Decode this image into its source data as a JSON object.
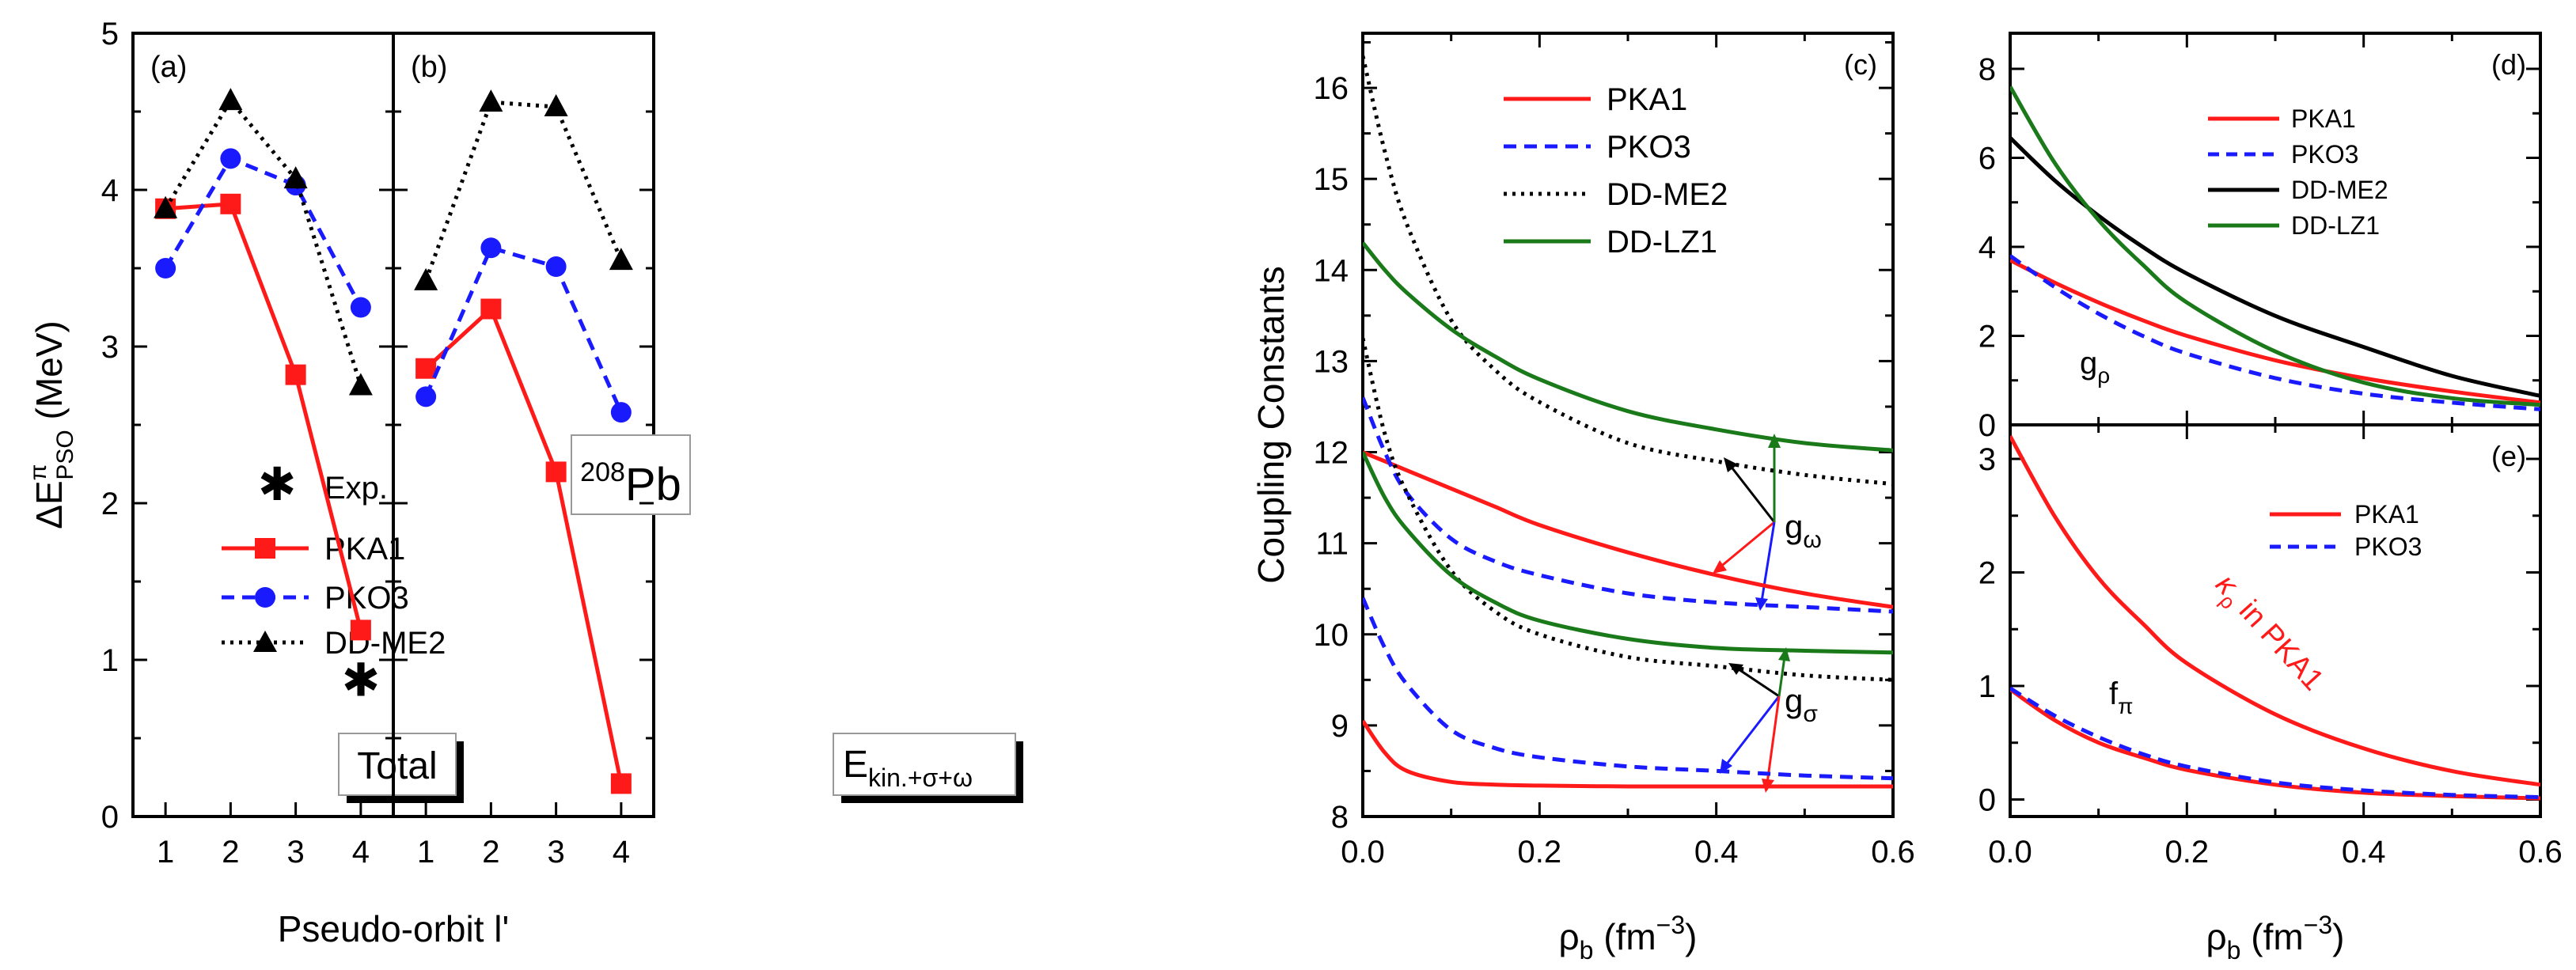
{
  "colors": {
    "PKA1": "#ff1a1a",
    "PKO3": "#1a1aff",
    "DD-ME2": "#000000",
    "DD-LZ1": "#1a7a1a"
  },
  "labels": {
    "y_left": "ΔE",
    "y_left_sup": "π",
    "y_left_sub": "PSO",
    "y_left_unit": " (MeV)",
    "x_left": "Pseudo-orbit l'",
    "nucleus_mass": "208",
    "nucleus_sym": "Pb",
    "panel_a_box": "Total",
    "panel_b_box_main": "E",
    "panel_b_box_sub": "kin.+σ+ω",
    "coupling_ylabel": "Coupling Constants",
    "rho_label": "ρ",
    "rho_sub": "b",
    "rho_unit": " (fm",
    "rho_exp": "−3",
    "rho_close": ")",
    "g_omega": "g",
    "g_omega_sub": "ω",
    "g_sigma": "g",
    "g_sigma_sub": "σ",
    "g_rho": "g",
    "g_rho_sub": "ρ",
    "kappa": "κ",
    "kappa_sub": "ρ",
    "kappa_rest": " in PKA1",
    "f_pi": "f",
    "f_pi_sub": "π"
  },
  "chart_data": [
    {
      "id": "a",
      "type": "line",
      "panel_label": "(a)",
      "x": [
        1,
        2,
        3,
        4
      ],
      "xlim": [
        0.5,
        4.5
      ],
      "ylim": [
        0,
        5
      ],
      "xticks": [
        "1",
        "2",
        "3",
        "4"
      ],
      "yticks": [
        "0",
        "1",
        "2",
        "3",
        "4",
        "5"
      ],
      "series": [
        {
          "name": "PKA1",
          "values": [
            3.88,
            3.91,
            2.82,
            1.19
          ],
          "marker": "square",
          "style": "solid"
        },
        {
          "name": "PKO3",
          "values": [
            3.5,
            4.2,
            4.03,
            3.25
          ],
          "marker": "circle",
          "style": "dashed"
        },
        {
          "name": "DD-ME2",
          "values": [
            3.88,
            4.57,
            4.07,
            2.75
          ],
          "marker": "triangle",
          "style": "dotted"
        }
      ],
      "experiment": {
        "name": "Exp.",
        "x": 4,
        "value": 0.87
      },
      "legend": [
        "Exp.",
        "PKA1",
        "PKO3",
        "DD-ME2"
      ]
    },
    {
      "id": "b",
      "type": "line",
      "panel_label": "(b)",
      "x": [
        1,
        2,
        3,
        4
      ],
      "xlim": [
        0.5,
        4.5
      ],
      "ylim": [
        0,
        5
      ],
      "xticks": [
        "1",
        "2",
        "3",
        "4"
      ],
      "series": [
        {
          "name": "PKA1",
          "values": [
            2.86,
            3.24,
            2.2,
            0.21
          ],
          "marker": "square",
          "style": "solid"
        },
        {
          "name": "PKO3",
          "values": [
            2.68,
            3.63,
            3.51,
            2.58
          ],
          "marker": "circle",
          "style": "dashed"
        },
        {
          "name": "DD-ME2",
          "values": [
            3.42,
            4.56,
            4.53,
            3.55
          ],
          "marker": "triangle",
          "style": "dotted"
        }
      ]
    },
    {
      "id": "c",
      "type": "line",
      "panel_label": "(c)",
      "x": [
        0,
        0.025,
        0.05,
        0.1,
        0.15,
        0.2,
        0.3,
        0.4,
        0.5,
        0.6
      ],
      "xlim": [
        0,
        0.6
      ],
      "ylim": [
        8,
        16.6
      ],
      "xticks": [
        "0.0",
        "0.2",
        "0.4",
        "0.6"
      ],
      "yticks": [
        "8",
        "9",
        "10",
        "11",
        "12",
        "13",
        "14",
        "15",
        "16"
      ],
      "series": [
        {
          "name": "PKA1",
          "coupling": "g_omega",
          "values": [
            12.0,
            11.9,
            11.8,
            11.6,
            11.4,
            11.2,
            10.9,
            10.65,
            10.45,
            10.3
          ],
          "style": "solid"
        },
        {
          "name": "PKA1",
          "coupling": "g_sigma",
          "values": [
            9.05,
            8.7,
            8.5,
            8.38,
            8.35,
            8.34,
            8.33,
            8.33,
            8.33,
            8.33
          ],
          "style": "solid"
        },
        {
          "name": "PKO3",
          "coupling": "g_omega",
          "values": [
            12.6,
            12.0,
            11.55,
            11.05,
            10.8,
            10.65,
            10.45,
            10.35,
            10.3,
            10.25
          ],
          "style": "dashed"
        },
        {
          "name": "PKO3",
          "coupling": "g_sigma",
          "values": [
            10.4,
            9.85,
            9.45,
            8.95,
            8.75,
            8.65,
            8.55,
            8.5,
            8.45,
            8.42
          ],
          "style": "dashed"
        },
        {
          "name": "DD-ME2",
          "coupling": "g_omega",
          "values": [
            16.35,
            15.3,
            14.5,
            13.45,
            12.9,
            12.55,
            12.1,
            11.9,
            11.75,
            11.65
          ],
          "style": "dotted"
        },
        {
          "name": "DD-ME2",
          "coupling": "g_sigma",
          "values": [
            13.25,
            12.2,
            11.55,
            10.7,
            10.25,
            10.0,
            9.75,
            9.65,
            9.55,
            9.5
          ],
          "style": "dotted"
        },
        {
          "name": "DD-LZ1",
          "coupling": "g_omega",
          "values": [
            14.3,
            14.0,
            13.75,
            13.35,
            13.05,
            12.8,
            12.45,
            12.25,
            12.1,
            12.02
          ],
          "style": "solid"
        },
        {
          "name": "DD-LZ1",
          "coupling": "g_sigma",
          "values": [
            12.0,
            11.5,
            11.15,
            10.65,
            10.35,
            10.15,
            9.95,
            9.85,
            9.82,
            9.8
          ],
          "style": "solid"
        }
      ],
      "legend": [
        "PKA1",
        "PKO3",
        "DD-ME2",
        "DD-LZ1"
      ]
    },
    {
      "id": "d",
      "type": "line",
      "panel_label": "(d)",
      "x": [
        0,
        0.05,
        0.1,
        0.15,
        0.2,
        0.3,
        0.4,
        0.5,
        0.6
      ],
      "xlim": [
        0,
        0.6
      ],
      "ylim": [
        0,
        8.8
      ],
      "yticks": [
        "0",
        "2",
        "4",
        "6",
        "8"
      ],
      "series": [
        {
          "name": "PKA1",
          "values": [
            3.7,
            3.2,
            2.75,
            2.35,
            2.0,
            1.45,
            1.05,
            0.75,
            0.5
          ],
          "style": "solid"
        },
        {
          "name": "PKO3",
          "values": [
            3.8,
            3.1,
            2.5,
            2.0,
            1.6,
            1.05,
            0.7,
            0.5,
            0.35
          ],
          "style": "dashed"
        },
        {
          "name": "DD-ME2",
          "values": [
            6.45,
            5.5,
            4.7,
            4.0,
            3.4,
            2.45,
            1.75,
            1.1,
            0.65
          ],
          "style": "solid"
        },
        {
          "name": "DD-LZ1",
          "values": [
            7.6,
            5.9,
            4.6,
            3.6,
            2.75,
            1.65,
            0.95,
            0.6,
            0.45
          ],
          "style": "solid"
        }
      ],
      "legend": [
        "PKA1",
        "PKO3",
        "DD-ME2",
        "DD-LZ1"
      ]
    },
    {
      "id": "e",
      "type": "line",
      "panel_label": "(e)",
      "x": [
        0,
        0.05,
        0.1,
        0.15,
        0.2,
        0.3,
        0.4,
        0.5,
        0.6
      ],
      "xlim": [
        0,
        0.6
      ],
      "ylim": [
        -0.15,
        3.3
      ],
      "xticks": [
        "0.0",
        "0.2",
        "0.4",
        "0.6"
      ],
      "yticks": [
        "0",
        "1",
        "2",
        "3"
      ],
      "series": [
        {
          "name": "PKA1",
          "quantity": "kappa_rho",
          "values": [
            3.2,
            2.5,
            1.95,
            1.55,
            1.2,
            0.75,
            0.45,
            0.25,
            0.13
          ],
          "style": "solid"
        },
        {
          "name": "PKA1",
          "quantity": "f_pi",
          "values": [
            0.97,
            0.7,
            0.5,
            0.37,
            0.26,
            0.13,
            0.06,
            0.03,
            0.01
          ],
          "style": "solid"
        },
        {
          "name": "PKO3",
          "quantity": "f_pi",
          "values": [
            0.98,
            0.74,
            0.55,
            0.4,
            0.29,
            0.15,
            0.08,
            0.04,
            0.02
          ],
          "style": "dashed"
        }
      ],
      "legend": [
        "PKA1",
        "PKO3"
      ]
    }
  ]
}
